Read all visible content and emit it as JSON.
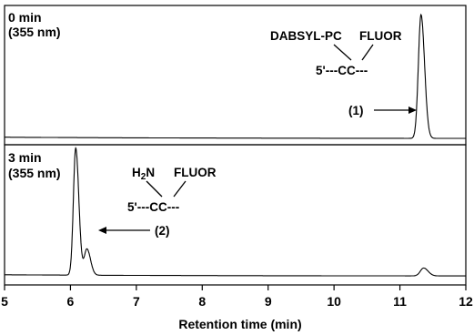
{
  "chart_data": {
    "type": "line",
    "title": "",
    "xlabel": "Retention time (min)",
    "xlim": [
      5,
      12
    ],
    "x_ticks": [
      "5",
      "6",
      "7",
      "8",
      "9",
      "10",
      "11",
      "12"
    ],
    "grid": false,
    "panels": [
      {
        "time_label": "0 min",
        "wavelength_label": "(355 nm)",
        "peaks": [
          {
            "x": 11.32,
            "y": 0.95,
            "width": 0.04
          }
        ],
        "baseline": 0.02,
        "structure": {
          "left_group": "DABSYL-PC",
          "right_group": "FLUOR",
          "strand": "5'---CC---",
          "compound_label": "(1)"
        }
      },
      {
        "time_label": "3 min",
        "wavelength_label": "(355 nm)",
        "peaks": [
          {
            "x": 6.08,
            "y": 0.97,
            "width": 0.035
          },
          {
            "x": 6.25,
            "y": 0.2,
            "width": 0.04
          },
          {
            "x": 11.36,
            "y": 0.06,
            "width": 0.05
          }
        ],
        "baseline": 0.04,
        "structure": {
          "left_group_main": "H",
          "left_group_sub": "2",
          "left_group_end": "N",
          "right_group": "FLUOR",
          "strand": "5'---CC---",
          "compound_label": "(2)"
        }
      }
    ]
  }
}
